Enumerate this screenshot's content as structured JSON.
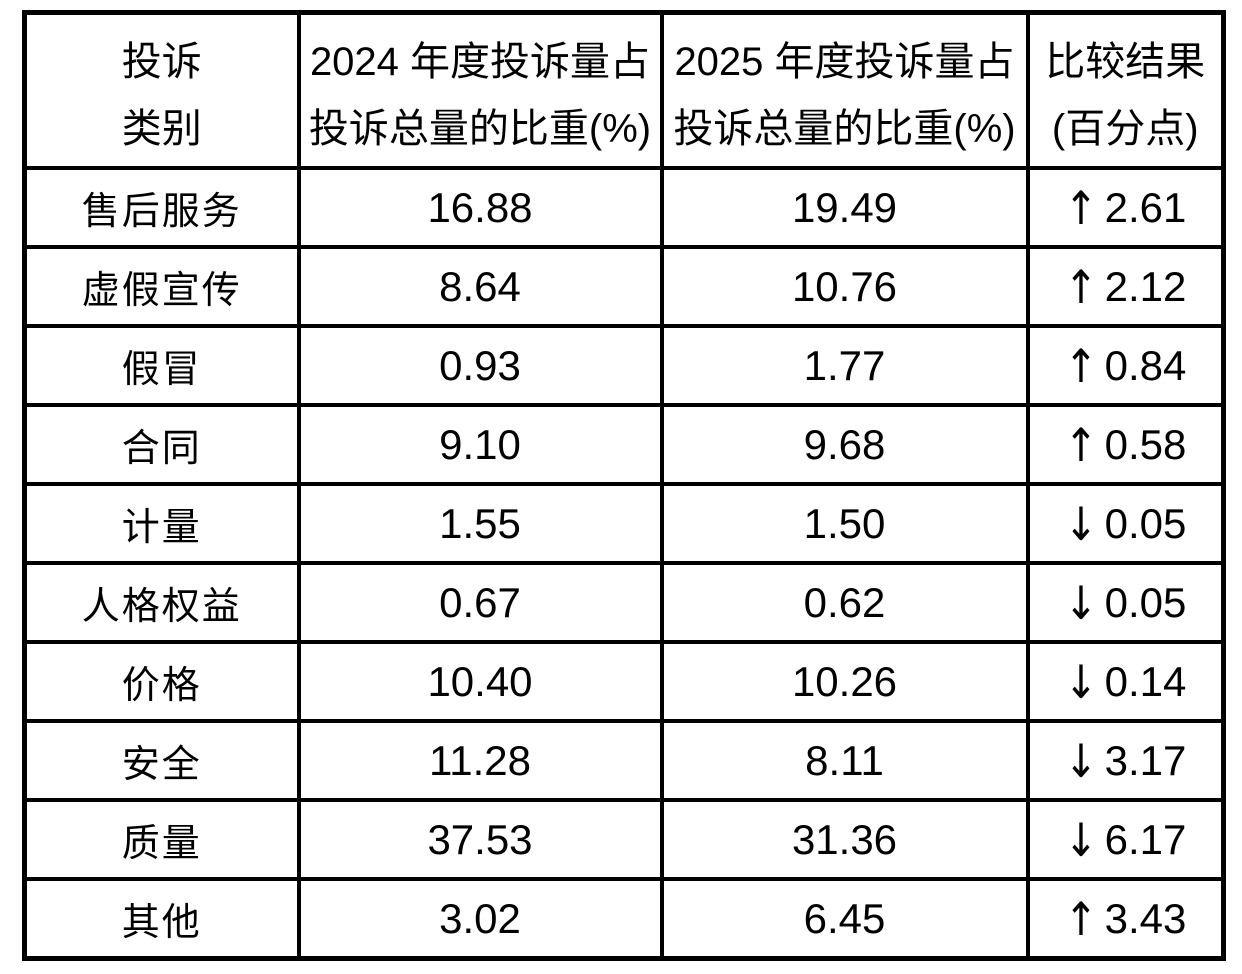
{
  "page": {
    "background_color": "#ffffff",
    "border_color": "#000000",
    "text_color": "#000000"
  },
  "table": {
    "columns": [
      {
        "id": "category",
        "header_lines": [
          "投诉",
          "类别"
        ]
      },
      {
        "id": "y2024",
        "header_lines": [
          "2024 年度投诉量占",
          "投诉总量的比重(%)"
        ]
      },
      {
        "id": "y2025",
        "header_lines": [
          "2025 年度投诉量占",
          "投诉总量的比重(%)"
        ]
      },
      {
        "id": "change",
        "header_lines": [
          "比较结果",
          "(百分点)"
        ]
      }
    ],
    "rows": [
      {
        "category": "售后服务",
        "y2024": "16.88",
        "y2025": "19.49",
        "change_arrow": "↑",
        "change_value": "2.61",
        "direction": "up"
      },
      {
        "category": "虚假宣传",
        "y2024": "8.64",
        "y2025": "10.76",
        "change_arrow": "↑",
        "change_value": "2.12",
        "direction": "up"
      },
      {
        "category": "假冒",
        "y2024": "0.93",
        "y2025": "1.77",
        "change_arrow": "↑",
        "change_value": "0.84",
        "direction": "up"
      },
      {
        "category": "合同",
        "y2024": "9.10",
        "y2025": "9.68",
        "change_arrow": "↑",
        "change_value": "0.58",
        "direction": "up"
      },
      {
        "category": "计量",
        "y2024": "1.55",
        "y2025": "1.50",
        "change_arrow": "↓",
        "change_value": "0.05",
        "direction": "down"
      },
      {
        "category": "人格权益",
        "y2024": "0.67",
        "y2025": "0.62",
        "change_arrow": "↓",
        "change_value": "0.05",
        "direction": "down"
      },
      {
        "category": "价格",
        "y2024": "10.40",
        "y2025": "10.26",
        "change_arrow": "↓",
        "change_value": "0.14",
        "direction": "down"
      },
      {
        "category": "安全",
        "y2024": "11.28",
        "y2025": "8.11",
        "change_arrow": "↓",
        "change_value": "3.17",
        "direction": "down"
      },
      {
        "category": "质量",
        "y2024": "37.53",
        "y2025": "31.36",
        "change_arrow": "↓",
        "change_value": "6.17",
        "direction": "down"
      },
      {
        "category": "其他",
        "y2024": "3.02",
        "y2025": "6.45",
        "change_arrow": "↑",
        "change_value": "3.43",
        "direction": "up"
      }
    ]
  }
}
